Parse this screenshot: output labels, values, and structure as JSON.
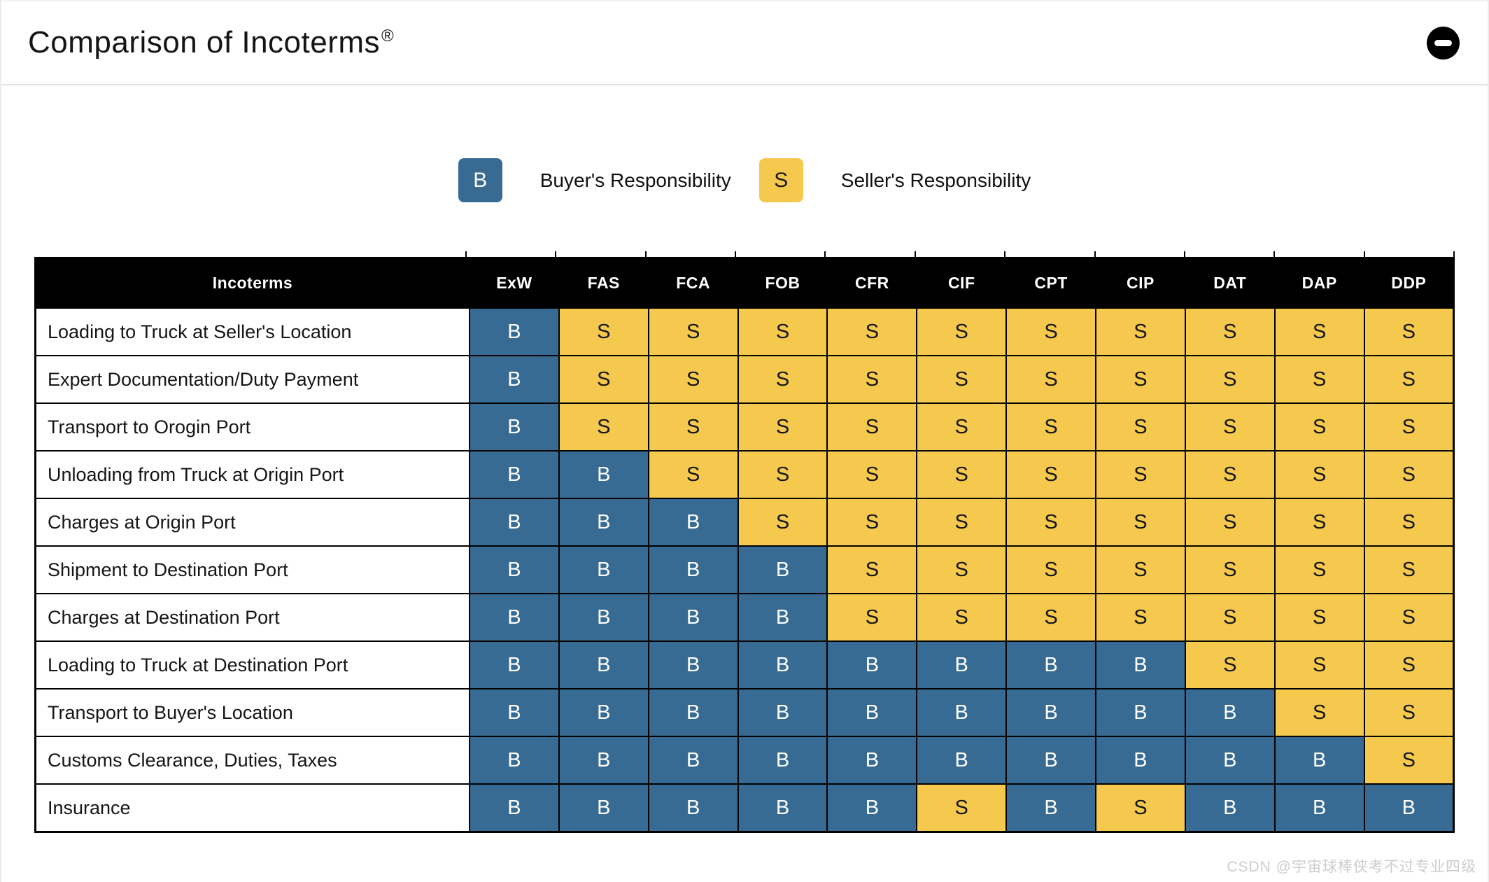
{
  "page": {
    "title": "Comparison of Incoterms",
    "title_mark": "®"
  },
  "controls": {
    "collapse_button_icon": "minus-icon"
  },
  "legend": {
    "items": [
      {
        "symbol": "B",
        "label": "Buyer's Responsibility",
        "color": "#386b93",
        "text_color": "#ffffff"
      },
      {
        "symbol": "S",
        "label": "Seller's Responsibility",
        "color": "#f5c94d",
        "text_color": "#1a1a1a"
      }
    ]
  },
  "chart_data": {
    "type": "table",
    "title": "Comparison of Incoterms®",
    "columns": [
      "Incoterms",
      "ExW",
      "FAS",
      "FCA",
      "FOB",
      "CFR",
      "CIF",
      "CPT",
      "CIP",
      "DAT",
      "DAP",
      "DDP"
    ],
    "legend": {
      "B": "Buyer's Responsibility",
      "S": "Seller's Responsibility"
    },
    "rows": [
      {
        "label": "Loading to Truck at Seller's Location",
        "values": [
          "B",
          "S",
          "S",
          "S",
          "S",
          "S",
          "S",
          "S",
          "S",
          "S",
          "S"
        ]
      },
      {
        "label": "Expert Documentation/Duty Payment",
        "values": [
          "B",
          "S",
          "S",
          "S",
          "S",
          "S",
          "S",
          "S",
          "S",
          "S",
          "S"
        ]
      },
      {
        "label": "Transport to Orogin Port",
        "values": [
          "B",
          "S",
          "S",
          "S",
          "S",
          "S",
          "S",
          "S",
          "S",
          "S",
          "S"
        ]
      },
      {
        "label": "Unloading from Truck at Origin Port",
        "values": [
          "B",
          "B",
          "S",
          "S",
          "S",
          "S",
          "S",
          "S",
          "S",
          "S",
          "S"
        ]
      },
      {
        "label": "Charges at Origin Port",
        "values": [
          "B",
          "B",
          "B",
          "S",
          "S",
          "S",
          "S",
          "S",
          "S",
          "S",
          "S"
        ]
      },
      {
        "label": "Shipment to Destination Port",
        "values": [
          "B",
          "B",
          "B",
          "B",
          "S",
          "S",
          "S",
          "S",
          "S",
          "S",
          "S"
        ]
      },
      {
        "label": "Charges at Destination Port",
        "values": [
          "B",
          "B",
          "B",
          "B",
          "S",
          "S",
          "S",
          "S",
          "S",
          "S",
          "S"
        ]
      },
      {
        "label": "Loading to Truck at Destination Port",
        "values": [
          "B",
          "B",
          "B",
          "B",
          "B",
          "B",
          "B",
          "B",
          "S",
          "S",
          "S"
        ]
      },
      {
        "label": "Transport to Buyer's Location",
        "values": [
          "B",
          "B",
          "B",
          "B",
          "B",
          "B",
          "B",
          "B",
          "B",
          "S",
          "S"
        ]
      },
      {
        "label": "Customs Clearance, Duties, Taxes",
        "values": [
          "B",
          "B",
          "B",
          "B",
          "B",
          "B",
          "B",
          "B",
          "B",
          "B",
          "S"
        ]
      },
      {
        "label": "Insurance",
        "values": [
          "B",
          "B",
          "B",
          "B",
          "B",
          "S",
          "B",
          "S",
          "B",
          "B",
          "B"
        ]
      }
    ]
  },
  "colors": {
    "buyer_blue": "#386b93",
    "seller_yellow": "#f5c94d",
    "header_bg": "#000000",
    "header_text": "#ffffff"
  },
  "watermark": "CSDN @宇宙球棒侠考不过专业四级"
}
